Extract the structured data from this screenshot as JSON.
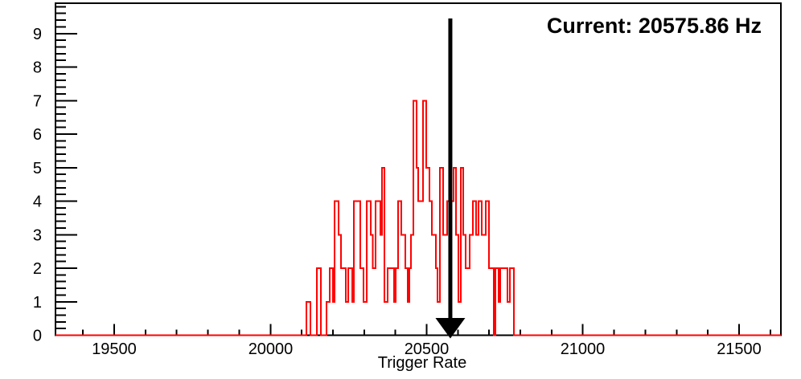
{
  "annotation": {
    "current_label": "Current: 20575.86 Hz"
  },
  "chart_data": {
    "type": "bar",
    "subtype": "step-histogram",
    "title": "",
    "xlabel": "Trigger Rate",
    "ylabel": "",
    "xlim": [
      19312,
      21634
    ],
    "ylim": [
      0,
      9.9
    ],
    "x_major_ticks": [
      19500,
      20000,
      20500,
      21000,
      21500
    ],
    "x_major_tick_labels": [
      "19500",
      "20000",
      "20500",
      "21000",
      "21500"
    ],
    "x_minor_step": 100,
    "y_major_ticks": [
      0,
      1,
      2,
      3,
      4,
      5,
      6,
      7,
      8,
      9
    ],
    "y_major_tick_labels": [
      "0",
      "1",
      "2",
      "3",
      "4",
      "5",
      "6",
      "7",
      "8",
      "9"
    ],
    "y_minor_step": 0.2,
    "grid": false,
    "legend": null,
    "line_color": "#ff0000",
    "axis_color": "#000000",
    "background_color": "#ffffff",
    "marker_arrow": {
      "x": 20575.86,
      "color": "#000000"
    },
    "steps_note": "Step histogram of Trigger Rate (Hz). Each entry is [bin-edge Hz, count]; the count holds from that edge until the next edge. Count is 0 outside the listed range.",
    "steps": [
      [
        20115,
        1
      ],
      [
        20128,
        0
      ],
      [
        20149,
        2
      ],
      [
        20162,
        0
      ],
      [
        20180,
        1
      ],
      [
        20190,
        2
      ],
      [
        20200,
        1
      ],
      [
        20205,
        4
      ],
      [
        20218,
        3
      ],
      [
        20226,
        2
      ],
      [
        20241,
        1
      ],
      [
        20249,
        2
      ],
      [
        20262,
        1
      ],
      [
        20267,
        4
      ],
      [
        20288,
        2
      ],
      [
        20298,
        1
      ],
      [
        20308,
        4
      ],
      [
        20321,
        3
      ],
      [
        20328,
        2
      ],
      [
        20336,
        4
      ],
      [
        20352,
        3
      ],
      [
        20357,
        5
      ],
      [
        20365,
        1
      ],
      [
        20375,
        2
      ],
      [
        20396,
        1
      ],
      [
        20401,
        2
      ],
      [
        20409,
        4
      ],
      [
        20419,
        3
      ],
      [
        20432,
        2
      ],
      [
        20440,
        1
      ],
      [
        20445,
        2
      ],
      [
        20450,
        3
      ],
      [
        20458,
        7
      ],
      [
        20468,
        5
      ],
      [
        20473,
        4
      ],
      [
        20488,
        7
      ],
      [
        20499,
        5
      ],
      [
        20509,
        4
      ],
      [
        20517,
        3
      ],
      [
        20530,
        2
      ],
      [
        20535,
        1
      ],
      [
        20543,
        5
      ],
      [
        20553,
        3
      ],
      [
        20566,
        4
      ],
      [
        20586,
        5
      ],
      [
        20594,
        3
      ],
      [
        20602,
        1
      ],
      [
        20609,
        5
      ],
      [
        20617,
        3
      ],
      [
        20625,
        2
      ],
      [
        20638,
        3
      ],
      [
        20648,
        4
      ],
      [
        20658,
        3
      ],
      [
        20666,
        4
      ],
      [
        20676,
        3
      ],
      [
        20689,
        4
      ],
      [
        20699,
        2
      ],
      [
        20715,
        0
      ],
      [
        20720,
        2
      ],
      [
        20730,
        1
      ],
      [
        20735,
        2
      ],
      [
        20759,
        1
      ],
      [
        20766,
        2
      ],
      [
        20779,
        0
      ]
    ]
  }
}
